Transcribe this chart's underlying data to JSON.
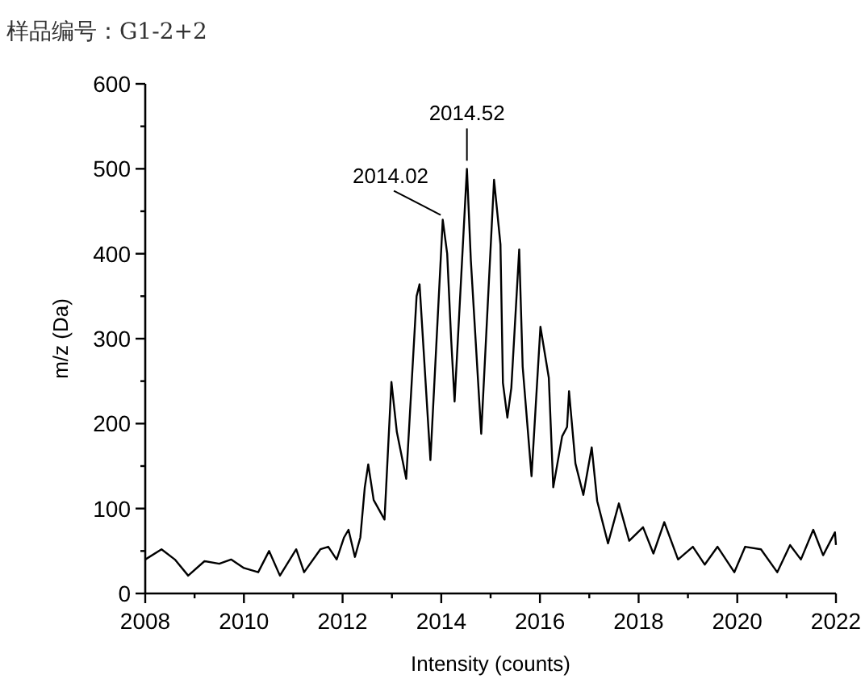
{
  "chart_data": {
    "type": "line",
    "title": "样品编号：G1-2+2",
    "xlabel": "Intensity (counts)",
    "ylabel": "m/z (Da)",
    "x": [
      2008,
      2008.33,
      2008.6,
      2008.87,
      2009.2,
      2009.5,
      2009.74,
      2010,
      2010.29,
      2010.51,
      2010.73,
      2011.06,
      2011.22,
      2011.55,
      2011.71,
      2011.88,
      2012.03,
      2012.12,
      2012.25,
      2012.36,
      2012.45,
      2012.52,
      2012.63,
      2012.85,
      2012.99,
      2013.1,
      2013.29,
      2013.5,
      2013.56,
      2013.78,
      2014.03,
      2014.12,
      2014.2,
      2014.27,
      2014.52,
      2014.6,
      2014.81,
      2015.07,
      2015.2,
      2015.25,
      2015.34,
      2015.42,
      2015.58,
      2015.65,
      2015.83,
      2016.01,
      2016.18,
      2016.27,
      2016.45,
      2016.55,
      2016.59,
      2016.72,
      2016.88,
      2017.05,
      2017.16,
      2017.38,
      2017.6,
      2017.81,
      2018.09,
      2018.3,
      2018.52,
      2018.8,
      2019.1,
      2019.34,
      2019.6,
      2019.94,
      2020.16,
      2020.48,
      2020.81,
      2021.07,
      2021.29,
      2021.54,
      2021.74,
      2021.98,
      2022
    ],
    "values": [
      40,
      52,
      40,
      21,
      38,
      35,
      40,
      30,
      25,
      50,
      21,
      52,
      25,
      52,
      55,
      40,
      66,
      75,
      43,
      66,
      125,
      152,
      110,
      87,
      249,
      190,
      135,
      350,
      364,
      157,
      440,
      400,
      300,
      226,
      500,
      392,
      188,
      487,
      411,
      248,
      207,
      242,
      405,
      267,
      138,
      314,
      254,
      125,
      185,
      196,
      238,
      153,
      116,
      172,
      109,
      59,
      106,
      62,
      78,
      47,
      84,
      40,
      55,
      34,
      55,
      25,
      55,
      52,
      25,
      57,
      40,
      75,
      45,
      72,
      57
    ],
    "color": "#000000",
    "marker": "none",
    "line_style": "solid",
    "xlim": [
      2008,
      2022
    ],
    "xticks": [
      2008,
      {
        "value": 2009,
        "label": null
      },
      2010,
      {
        "value": 2011,
        "label": null
      },
      2012,
      {
        "value": 2013,
        "label": null
      },
      2014,
      {
        "value": 2015,
        "label": null
      },
      2016,
      {
        "value": 2017,
        "label": null
      },
      2018,
      {
        "value": 2019,
        "label": null
      },
      2020,
      {
        "value": 2021,
        "label": null
      },
      2022
    ],
    "ylim": [
      0,
      600
    ],
    "yticks": [
      0,
      {
        "value": 50,
        "label": null
      },
      100,
      {
        "value": 150,
        "label": null
      },
      200,
      {
        "value": 250,
        "label": null
      },
      300,
      {
        "value": 350,
        "label": null
      },
      400,
      {
        "value": 450,
        "label": null
      },
      500,
      {
        "value": 550,
        "label": null
      },
      600
    ],
    "annotations": [
      {
        "text": "2014.02",
        "x": 2014.02,
        "y": 440
      },
      {
        "text": "2014.52",
        "x": 2014.52,
        "y": 500
      }
    ]
  }
}
